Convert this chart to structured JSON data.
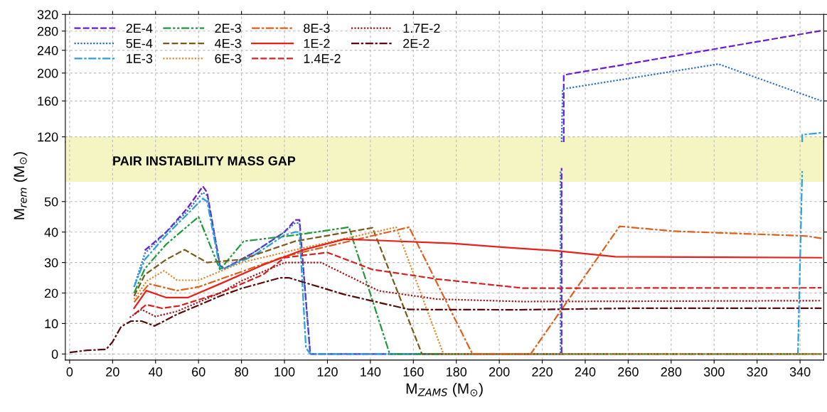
{
  "chart_data": [
    {
      "type": "line",
      "log": "y",
      "xlim": [
        -2,
        351
      ],
      "xticks": [
        0,
        20,
        40,
        60,
        80,
        100,
        120,
        140,
        160,
        180,
        200,
        220,
        240,
        260,
        280,
        300,
        320,
        340
      ],
      "ylim": [
        115,
        320
      ],
      "yticks": [
        120,
        160,
        200,
        240,
        280,
        320
      ],
      "tick_labels": "y",
      "grid": true,
      "bands": [
        {
          "axis": "y",
          "from": 115,
          "to": 120,
          "color": "#f5f5c3"
        }
      ],
      "series": [
        {
          "color": "#6a1bd6",
          "line_style": "dashed",
          "x": [
            230,
            230,
            350
          ],
          "values": [
            115,
            197,
            281
          ]
        },
        {
          "color": "#2f6fd0",
          "line_style": "dotted",
          "x": [
            229,
            229.5,
            302,
            350
          ],
          "values": [
            115,
            176,
            215,
            160
          ]
        },
        {
          "color": "#2aa0e0",
          "line_style": "dashdot",
          "x": [
            341,
            341,
            350
          ],
          "values": [
            115,
            122,
            124
          ]
        }
      ]
    },
    {
      "type": "line",
      "xlim": [
        -2,
        351
      ],
      "xticks": [
        0,
        20,
        40,
        60,
        80,
        100,
        120,
        140,
        160,
        180,
        200,
        220,
        240,
        260,
        280,
        300,
        320,
        340
      ],
      "ylim": [
        -2,
        69.5
      ],
      "yticks": [
        0,
        10,
        20,
        30,
        40,
        50
      ],
      "grid": true,
      "legend": "top left",
      "xlabel": "M$_{ZAMS}$ (M$_{⊙}$)",
      "ylabel": "M$_{rem}$ (M$_{⊙}$)",
      "bands": [
        {
          "axis": "y",
          "from": 56.5,
          "to": 69.5,
          "color": "#f5f5c3",
          "label": "PAIR INSTABILITY MASS GAP"
        }
      ],
      "series": [
        {
          "name": "2E-4",
          "color": "#6a1bd6",
          "line_style": "dashed",
          "x": [
            35,
            45,
            55,
            62,
            64,
            70,
            72,
            85,
            100,
            105,
            107,
            112,
            229,
            229
          ],
          "values": [
            34,
            40,
            48,
            55,
            53,
            29,
            28,
            33,
            40,
            44,
            44,
            0,
            0,
            61
          ]
        },
        {
          "name": "5E-4",
          "color": "#2f6fd0",
          "line_style": "dotted",
          "x": [
            30,
            35,
            45,
            55,
            62,
            64,
            70,
            72,
            85,
            100,
            105,
            107,
            112,
            228.5,
            228.5
          ],
          "values": [
            22,
            33,
            40,
            47,
            53,
            52,
            29,
            28,
            33,
            40,
            43,
            43,
            0,
            0,
            60
          ]
        },
        {
          "name": "1E-3",
          "color": "#2aa0e0",
          "line_style": "dashdot",
          "x": [
            30,
            35,
            45,
            55,
            62,
            64,
            70,
            72,
            85,
            100,
            105,
            107,
            110,
            112,
            339,
            341
          ],
          "values": [
            22,
            31,
            39,
            46,
            51,
            50,
            28,
            28,
            32,
            39,
            40,
            40,
            2,
            0,
            0,
            60
          ]
        },
        {
          "name": "2E-3",
          "color": "#1f9a3a",
          "line_style": "dashdotdot",
          "x": [
            30,
            35,
            45,
            60,
            70,
            81,
            105,
            130,
            149,
            350
          ],
          "values": [
            20,
            28,
            36,
            45,
            27.7,
            37,
            39,
            41.6,
            0,
            0
          ]
        },
        {
          "name": "4E-3",
          "color": "#7a5a1a",
          "line_style": "dashed",
          "x": [
            30,
            35,
            45,
            53.5,
            64,
            80,
            105,
            141,
            164,
            350
          ],
          "values": [
            19,
            26,
            31,
            34.2,
            30,
            31,
            37,
            41.4,
            0,
            0
          ]
        },
        {
          "name": "6E-3",
          "color": "#e08a30",
          "line_style": "dotted",
          "x": [
            30,
            36,
            44,
            50,
            60,
            80,
            110,
            152,
            174,
            350
          ],
          "values": [
            18,
            24,
            27.3,
            24.2,
            24.2,
            30,
            35,
            41.6,
            0,
            0
          ]
        },
        {
          "name": "8E-3",
          "color": "#e0601a",
          "line_style": "dashdot",
          "x": [
            30,
            37,
            50,
            60,
            100,
            158,
            187.5,
            214.6,
            256,
            281,
            343,
            351
          ],
          "values": [
            17,
            23,
            20.8,
            22,
            32,
            41.6,
            0,
            0,
            41.9,
            40.3,
            38.7,
            37.8
          ]
        },
        {
          "name": "1E-2",
          "color": "#e8201a",
          "line_style": "solid",
          "x": [
            30,
            35.7,
            45,
            55,
            70,
            90,
            108,
            128,
            178,
            202,
            226,
            254,
            350
          ],
          "values": [
            15,
            20.8,
            18.5,
            18.5,
            23,
            29.2,
            34,
            37.7,
            36.3,
            35,
            33.9,
            31.9,
            31.6
          ]
        },
        {
          "name": "1.4E-2",
          "color": "#d82020",
          "line_style": "dashed",
          "x": [
            30,
            35.7,
            43,
            51,
            70,
            90,
            100,
            120,
            141,
            171,
            211,
            350
          ],
          "values": [
            13,
            16.2,
            15,
            15.8,
            20,
            26,
            31.6,
            33.3,
            27.7,
            24.6,
            21.6,
            21.7
          ]
        },
        {
          "name": "1.7E-2",
          "color": "#a01818",
          "line_style": "dotted",
          "x": [
            28,
            33.5,
            40,
            50,
            60,
            70,
            80,
            90,
            100,
            117,
            144,
            171,
            211,
            350
          ],
          "values": [
            12,
            14.6,
            12.3,
            14,
            17,
            20,
            24,
            27,
            30,
            30,
            20.7,
            18,
            17.2,
            17.5
          ]
        },
        {
          "name": "2E-2",
          "color": "#5a0a0a",
          "line_style": "dashdot",
          "x": [
            0,
            8,
            17,
            20,
            24,
            28.6,
            33.5,
            39.5,
            50,
            60,
            70,
            80,
            98,
            102,
            128,
            158,
            210,
            260,
            350
          ],
          "values": [
            0.5,
            1.2,
            1.5,
            4,
            9,
            10.8,
            10.8,
            9.2,
            13,
            16,
            19,
            21.5,
            25,
            25,
            19.5,
            14.6,
            14.5,
            15,
            15
          ]
        }
      ]
    }
  ]
}
